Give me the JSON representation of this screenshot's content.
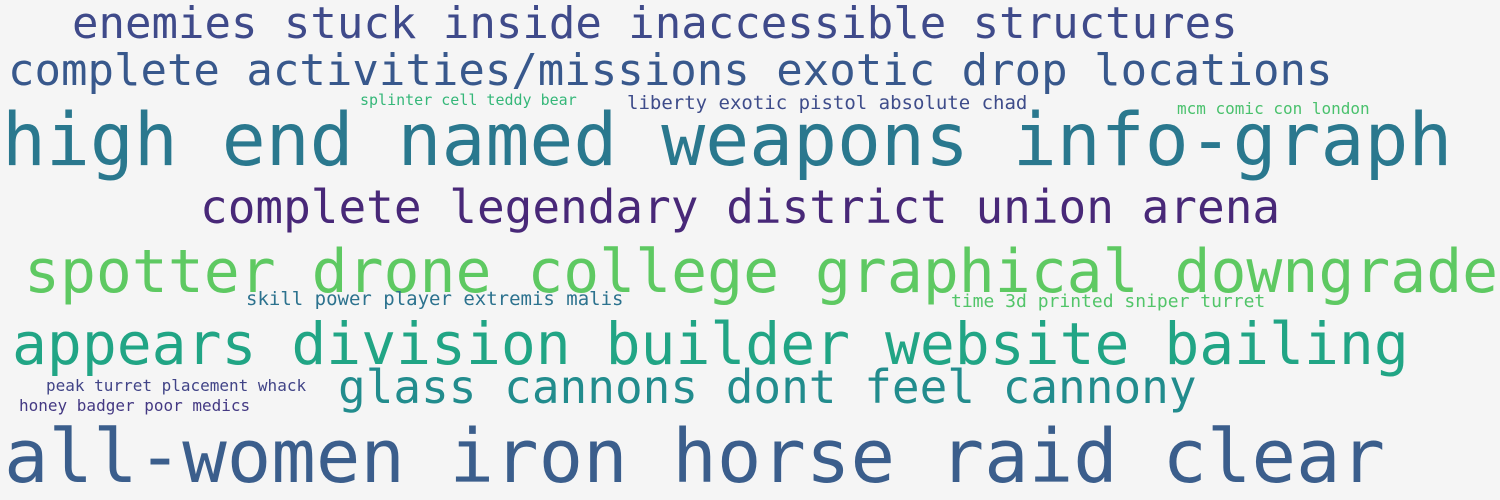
{
  "words": [
    {
      "text": "enemies stuck inside inaccessible structures",
      "color": "#3f4a8a"
    },
    {
      "text": "complete activities/missions exotic drop locations",
      "color": "#38588c"
    },
    {
      "text": "high end named weapons info-graph",
      "color": "#2a788e"
    },
    {
      "text": "complete legendary district union arena",
      "color": "#482878"
    },
    {
      "text": "spotter drone college graphical downgrade",
      "color": "#5ec962"
    },
    {
      "text": "appears division builder website bailing",
      "color": "#21a585"
    },
    {
      "text": "glass cannons dont feel cannony",
      "color": "#228c8d"
    },
    {
      "text": "all-women iron horse raid clear",
      "color": "#3b5e8c"
    },
    {
      "text": "splinter cell teddy bear",
      "color": "#35b779"
    },
    {
      "text": "liberty exotic pistol absolute chad",
      "color": "#3e4c8a"
    },
    {
      "text": "mcm comic con london",
      "color": "#4ac16d"
    },
    {
      "text": "skill power player extremis malis",
      "color": "#2c728e"
    },
    {
      "text": "time 3d printed sniper turret",
      "color": "#52c569"
    },
    {
      "text": "peak turret placement whack",
      "color": "#414487"
    },
    {
      "text": "honey badger poor medics",
      "color": "#443983"
    }
  ]
}
